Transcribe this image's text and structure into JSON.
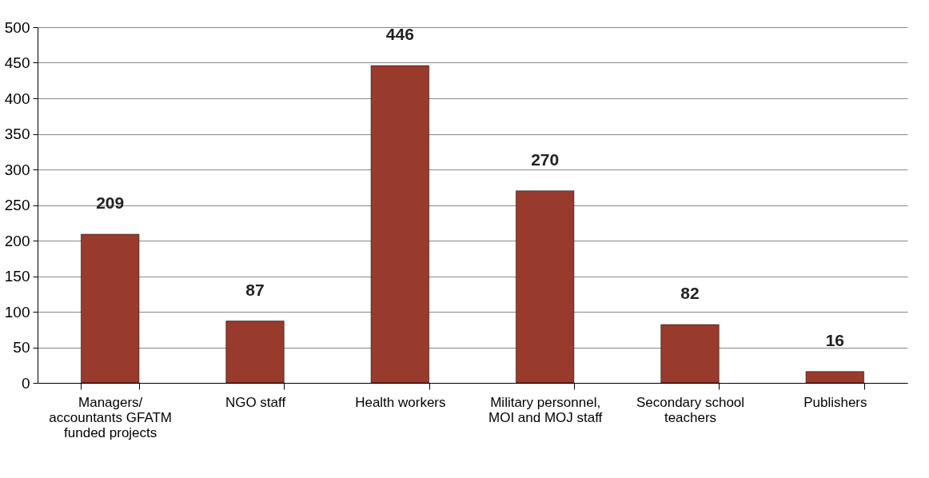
{
  "chart_data": {
    "type": "bar",
    "categories": [
      "Managers/ accountants GFATM funded projects",
      "NGO staff",
      "Health workers",
      "Military personnel, MOI and MOJ staff",
      "Secondary school teachers",
      "Publishers"
    ],
    "values": [
      209,
      87,
      446,
      270,
      82,
      16
    ],
    "color": "#983a2c",
    "ylim": [
      0,
      500
    ],
    "yticks": [
      0,
      50,
      100,
      150,
      200,
      250,
      300,
      350,
      400,
      450,
      500
    ],
    "grid": "y",
    "data_labels": true
  }
}
